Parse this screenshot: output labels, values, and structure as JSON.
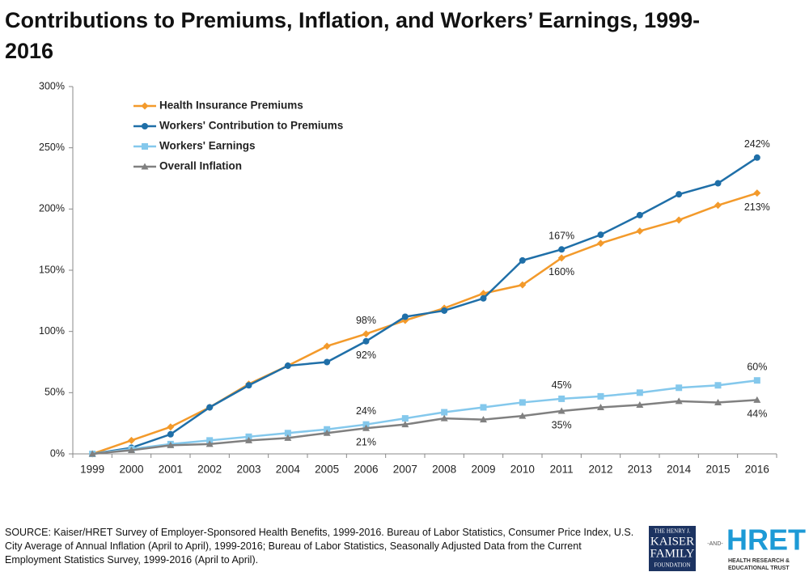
{
  "chart_data": {
    "type": "line",
    "title": "Contributions to Premiums, Inflation, and Workers’ Earnings, 1999-2016",
    "categories": [
      "1999",
      "2000",
      "2001",
      "2002",
      "2003",
      "2004",
      "2005",
      "2006",
      "2007",
      "2008",
      "2009",
      "2010",
      "2011",
      "2012",
      "2013",
      "2014",
      "2015",
      "2016"
    ],
    "series": [
      {
        "name": "Health Insurance Premiums",
        "color": "#f39a2b",
        "marker": "diamond",
        "values": [
          0,
          11,
          22,
          38,
          57,
          72,
          88,
          98,
          109,
          119,
          131,
          138,
          160,
          172,
          182,
          191,
          203,
          213
        ],
        "value_labels": [
          null,
          null,
          null,
          null,
          null,
          null,
          null,
          "98%",
          null,
          null,
          null,
          null,
          "160%",
          null,
          null,
          null,
          null,
          "213%"
        ]
      },
      {
        "name": "Workers' Contribution to Premiums",
        "color": "#1f6fa8",
        "marker": "circle",
        "values": [
          0,
          5,
          16,
          38,
          56,
          72,
          75,
          92,
          112,
          117,
          127,
          158,
          167,
          179,
          195,
          212,
          221,
          242
        ],
        "value_labels": [
          null,
          null,
          null,
          null,
          null,
          null,
          null,
          "92%",
          null,
          null,
          null,
          null,
          "167%",
          null,
          null,
          null,
          null,
          "242%"
        ]
      },
      {
        "name": "Workers' Earnings",
        "color": "#84c8ec",
        "marker": "square",
        "values": [
          0,
          4,
          8,
          11,
          14,
          17,
          20,
          24,
          29,
          34,
          38,
          42,
          45,
          47,
          50,
          54,
          56,
          60
        ],
        "value_labels": [
          null,
          null,
          null,
          null,
          null,
          null,
          null,
          "24%",
          null,
          null,
          null,
          null,
          "45%",
          null,
          null,
          null,
          null,
          "60%"
        ]
      },
      {
        "name": "Overall Inflation",
        "color": "#808080",
        "marker": "triangle",
        "values": [
          0,
          3,
          7,
          8,
          11,
          13,
          17,
          21,
          24,
          29,
          28,
          31,
          35,
          38,
          40,
          43,
          42,
          44
        ],
        "value_labels": [
          null,
          null,
          null,
          null,
          null,
          null,
          null,
          "21%",
          null,
          null,
          null,
          null,
          "35%",
          null,
          null,
          null,
          null,
          "44%"
        ]
      }
    ],
    "ylim": [
      0,
      300
    ],
    "yticks": [
      {
        "value": 0,
        "label": "0%"
      },
      {
        "value": 50,
        "label": "50%"
      },
      {
        "value": 100,
        "label": "100%"
      },
      {
        "value": 150,
        "label": "150%"
      },
      {
        "value": 200,
        "label": "200%"
      },
      {
        "value": 250,
        "label": "250%"
      },
      {
        "value": 300,
        "label": "300%"
      }
    ],
    "grid": false,
    "legend": "top-left",
    "source": "SOURCE:  Kaiser/HRET Survey of Employer-Sponsored Health Benefits, 1999-2016.  Bureau of Labor Statistics, Consumer Price Index, U.S. City Average of Annual Inflation (April to April), 1999-2016; Bureau of Labor Statistics, Seasonally Adjusted Data from the Current Employment Statistics Survey, 1999-2016 (April to April).",
    "logos": {
      "kaiser": [
        "THE HENRY J.",
        "KAISER",
        "FAMILY",
        "FOUNDATION"
      ],
      "and": "-AND-",
      "hret": "HRET",
      "hret_sub": [
        "HEALTH RESEARCH &",
        "EDUCATIONAL TRUST"
      ]
    }
  }
}
